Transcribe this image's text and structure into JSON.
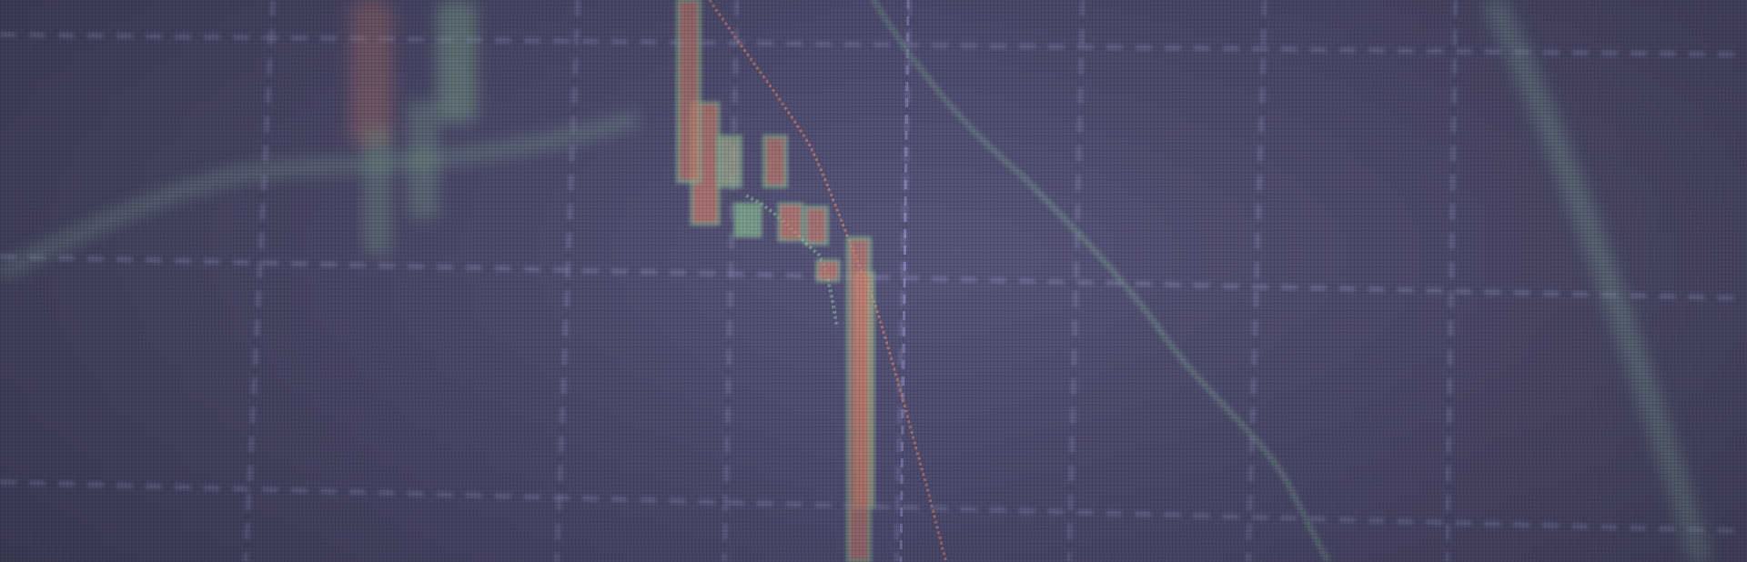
{
  "scene": {
    "description_free": true,
    "colors": {
      "background": "#4f4d6d",
      "grid": "#8d8fbe",
      "bull": "#8fc89b",
      "bear": "#d98872",
      "trend": "#86b79c"
    }
  },
  "chart_data": {
    "type": "line",
    "title": "",
    "xlabel": "",
    "ylabel": "",
    "series": [
      {
        "name": "",
        "values": [
          72,
          74,
          77,
          80,
          78,
          76,
          74,
          70,
          64,
          52,
          40,
          26,
          18,
          6
        ]
      }
    ],
    "candles": [
      {
        "open": 95,
        "close": 78,
        "high": 98,
        "low": 62
      },
      {
        "open": 88,
        "close": 70,
        "high": 94,
        "low": 55
      },
      {
        "open": 65,
        "close": 92,
        "high": 98,
        "low": 60
      },
      {
        "open": 70,
        "close": 92,
        "high": 100,
        "low": 30
      },
      {
        "open": 100,
        "close": 70,
        "high": 100,
        "low": 30
      },
      {
        "open": 67,
        "close": 75,
        "high": 84,
        "low": 50
      },
      {
        "open": 75,
        "close": 66,
        "high": 80,
        "low": 60
      },
      {
        "open": 61,
        "close": 56,
        "high": 68,
        "low": 52
      },
      {
        "open": 58,
        "close": 0,
        "high": 58,
        "low": 0
      }
    ],
    "grid": true
  }
}
